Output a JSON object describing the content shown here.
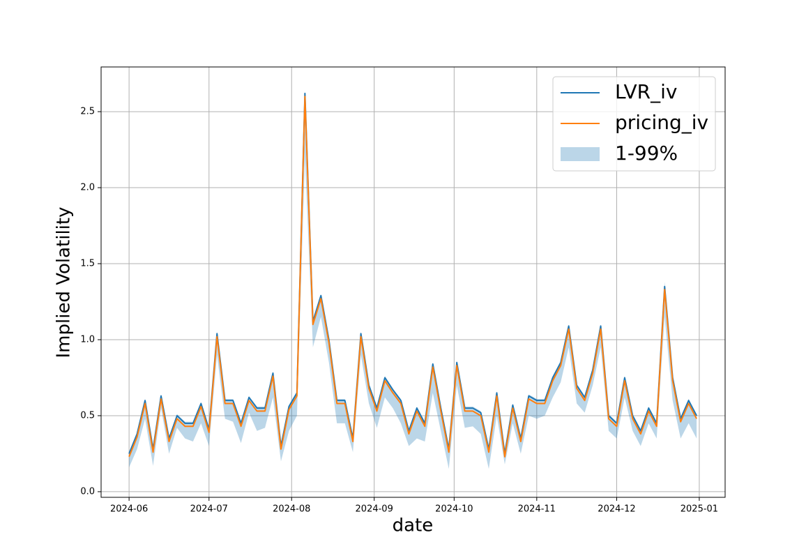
{
  "chart_data": {
    "type": "line",
    "xlabel": "date",
    "ylabel": "Implied Volatility",
    "x": [
      0,
      3,
      6,
      9,
      12,
      15,
      18,
      21,
      24,
      27,
      30,
      33,
      36,
      39,
      42,
      45,
      48,
      51,
      54,
      57,
      60,
      63,
      66,
      69,
      72,
      75,
      78,
      81,
      84,
      87,
      90,
      93,
      96,
      99,
      102,
      105,
      108,
      111,
      114,
      117,
      120,
      123,
      126,
      129,
      132,
      135,
      138,
      141,
      144,
      147,
      150,
      153,
      156,
      159,
      162,
      165,
      168,
      171,
      174,
      177,
      180,
      183,
      186,
      189,
      192,
      195,
      198,
      201,
      204,
      207,
      210,
      213
    ],
    "series": [
      {
        "name": "LVR_iv",
        "color": "#1f77b4",
        "values": [
          0.25,
          0.38,
          0.6,
          0.28,
          0.63,
          0.35,
          0.5,
          0.45,
          0.45,
          0.58,
          0.41,
          1.04,
          0.6,
          0.6,
          0.45,
          0.62,
          0.55,
          0.55,
          0.78,
          0.3,
          0.56,
          0.65,
          2.62,
          1.12,
          1.29,
          1.0,
          0.6,
          0.6,
          0.35,
          1.04,
          0.7,
          0.55,
          0.75,
          0.67,
          0.6,
          0.4,
          0.55,
          0.45,
          0.84,
          0.55,
          0.28,
          0.85,
          0.55,
          0.55,
          0.52,
          0.28,
          0.65,
          0.25,
          0.57,
          0.35,
          0.63,
          0.6,
          0.6,
          0.75,
          0.85,
          1.09,
          0.7,
          0.62,
          0.8,
          1.09,
          0.5,
          0.45,
          0.75,
          0.5,
          0.4,
          0.55,
          0.45,
          1.35,
          0.75,
          0.48,
          0.6,
          0.5
        ]
      },
      {
        "name": "pricing_iv",
        "color": "#ff7f0e",
        "values": [
          0.23,
          0.36,
          0.58,
          0.26,
          0.61,
          0.33,
          0.48,
          0.43,
          0.43,
          0.56,
          0.39,
          1.02,
          0.58,
          0.58,
          0.43,
          0.6,
          0.53,
          0.53,
          0.76,
          0.28,
          0.54,
          0.63,
          2.6,
          1.1,
          1.27,
          0.98,
          0.58,
          0.58,
          0.33,
          1.02,
          0.68,
          0.53,
          0.73,
          0.65,
          0.58,
          0.38,
          0.53,
          0.43,
          0.82,
          0.53,
          0.26,
          0.83,
          0.53,
          0.53,
          0.5,
          0.26,
          0.63,
          0.23,
          0.55,
          0.33,
          0.61,
          0.58,
          0.58,
          0.73,
          0.83,
          1.07,
          0.68,
          0.6,
          0.78,
          1.07,
          0.48,
          0.43,
          0.73,
          0.48,
          0.38,
          0.53,
          0.43,
          1.33,
          0.73,
          0.46,
          0.58,
          0.48
        ]
      }
    ],
    "band": {
      "name": "1-99%",
      "color": "#1f77b4",
      "opacity": 0.3,
      "upper": [
        0.26,
        0.39,
        0.61,
        0.29,
        0.64,
        0.36,
        0.51,
        0.46,
        0.46,
        0.59,
        0.42,
        1.05,
        0.61,
        0.61,
        0.46,
        0.63,
        0.56,
        0.56,
        0.79,
        0.31,
        0.57,
        0.66,
        2.63,
        1.13,
        1.3,
        1.01,
        0.61,
        0.61,
        0.36,
        1.05,
        0.71,
        0.56,
        0.76,
        0.68,
        0.61,
        0.41,
        0.56,
        0.46,
        0.85,
        0.56,
        0.29,
        0.86,
        0.56,
        0.56,
        0.53,
        0.29,
        0.66,
        0.26,
        0.58,
        0.36,
        0.64,
        0.61,
        0.61,
        0.76,
        0.86,
        1.1,
        0.71,
        0.63,
        0.81,
        1.1,
        0.51,
        0.46,
        0.76,
        0.51,
        0.41,
        0.56,
        0.46,
        1.38,
        0.76,
        0.49,
        0.61,
        0.51
      ],
      "lower": [
        0.16,
        0.28,
        0.48,
        0.17,
        0.55,
        0.25,
        0.42,
        0.35,
        0.33,
        0.45,
        0.3,
        0.9,
        0.48,
        0.46,
        0.32,
        0.52,
        0.4,
        0.42,
        0.62,
        0.2,
        0.4,
        0.5,
        2.2,
        0.95,
        1.15,
        0.85,
        0.45,
        0.45,
        0.26,
        0.9,
        0.58,
        0.42,
        0.62,
        0.55,
        0.45,
        0.3,
        0.35,
        0.33,
        0.65,
        0.4,
        0.15,
        0.7,
        0.42,
        0.43,
        0.38,
        0.15,
        0.5,
        0.18,
        0.45,
        0.25,
        0.5,
        0.48,
        0.5,
        0.62,
        0.72,
        0.95,
        0.58,
        0.52,
        0.7,
        0.95,
        0.4,
        0.35,
        0.62,
        0.4,
        0.3,
        0.45,
        0.35,
        1.15,
        0.6,
        0.35,
        0.45,
        0.35
      ]
    },
    "xlim": [
      -10.5,
      223.7
    ],
    "xticks": [
      {
        "value": 0,
        "label": "2024-06"
      },
      {
        "value": 30,
        "label": "2024-07"
      },
      {
        "value": 61,
        "label": "2024-08"
      },
      {
        "value": 92,
        "label": "2024-09"
      },
      {
        "value": 122,
        "label": "2024-10"
      },
      {
        "value": 153,
        "label": "2024-11"
      },
      {
        "value": 183,
        "label": "2024-12"
      },
      {
        "value": 214,
        "label": "2025-01"
      }
    ],
    "ylim": [
      -0.037,
      2.794
    ],
    "yticks": [
      {
        "value": 0,
        "label": "0.0"
      },
      0.5,
      {
        "value": 1,
        "label": "1.0"
      },
      1.5,
      {
        "value": 2,
        "label": "2.0"
      },
      2.5
    ],
    "grid": true,
    "legend": "upper right"
  }
}
